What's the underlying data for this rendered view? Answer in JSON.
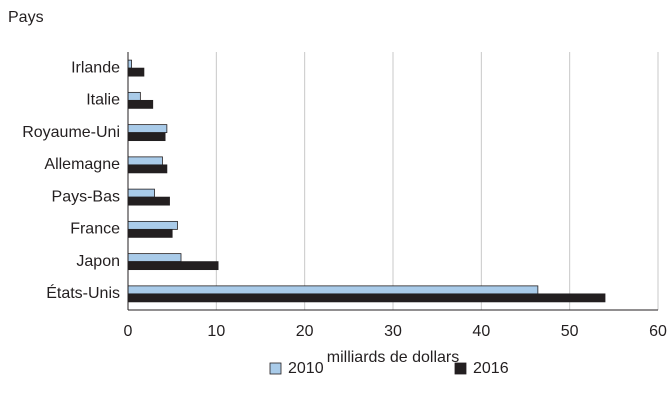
{
  "chart_data": {
    "type": "hbar",
    "y_axis_title": "Pays",
    "x_axis_title": "milliards de dollars",
    "categories": [
      "Irlande",
      "Italie",
      "Royaume-Uni",
      "Allemagne",
      "Pays-Bas",
      "France",
      "Japon",
      "États-Unis"
    ],
    "series": [
      {
        "name": "2010",
        "color": "#a9cbe9",
        "values": [
          0.4,
          1.4,
          4.4,
          3.9,
          3.0,
          5.6,
          6.0,
          46.4
        ]
      },
      {
        "name": "2016",
        "color": "#231f20",
        "values": [
          1.8,
          2.8,
          4.2,
          4.4,
          4.7,
          5.0,
          10.2,
          54.0
        ]
      }
    ],
    "xlim": [
      0,
      60
    ],
    "xticks": [
      0,
      10,
      20,
      30,
      40,
      50,
      60
    ],
    "grid": true,
    "legend": "bottom"
  }
}
